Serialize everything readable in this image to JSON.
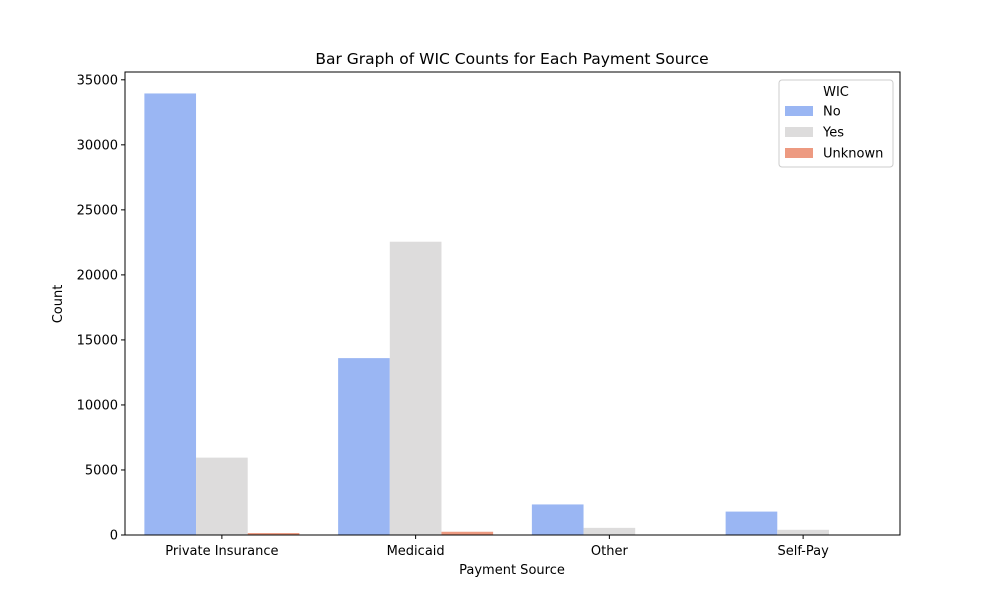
{
  "chart_data": {
    "type": "bar",
    "title": "Bar Graph of WIC Counts for Each Payment Source",
    "xlabel": "Payment Source",
    "ylabel": "Count",
    "categories": [
      "Private Insurance",
      "Medicaid",
      "Other",
      "Self-Pay"
    ],
    "series": [
      {
        "name": "No",
        "values": [
          33950,
          13600,
          2350,
          1800
        ],
        "color": "#9ab6f3"
      },
      {
        "name": "Yes",
        "values": [
          5950,
          22550,
          550,
          400
        ],
        "color": "#dddcdc"
      },
      {
        "name": "Unknown",
        "values": [
          150,
          250,
          0,
          0
        ],
        "color": "#ed9a81"
      }
    ],
    "ylim": [
      0,
      35600
    ],
    "yticks": [
      0,
      5000,
      10000,
      15000,
      20000,
      25000,
      30000,
      35000
    ],
    "ytick_labels": [
      "0",
      "5000",
      "10000",
      "15000",
      "20000",
      "25000",
      "30000",
      "35000"
    ],
    "legend": {
      "title": "WIC",
      "position": "top-right"
    },
    "grid": false
  }
}
